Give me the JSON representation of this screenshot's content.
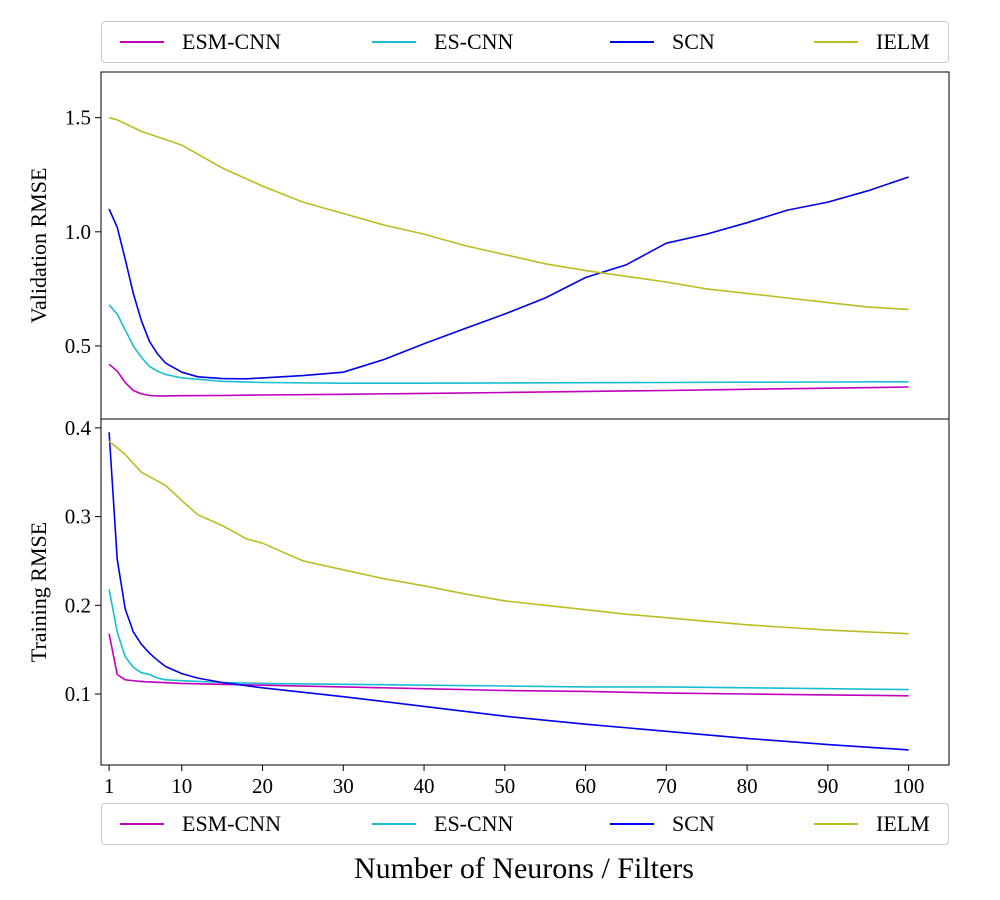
{
  "legend": {
    "items": [
      {
        "label": "ESM-CNN",
        "color": "#bf00bf"
      },
      {
        "label": "ES-CNN",
        "color": "#17becf"
      },
      {
        "label": "SCN",
        "color": "#0000ee"
      },
      {
        "label": "IELM",
        "color": "#bcbd22"
      }
    ]
  },
  "xlabel": "Number of Neurons / Filters",
  "chart_data": [
    {
      "type": "line",
      "ylabel": "Validation RMSE",
      "xlim": [
        0,
        105
      ],
      "ylim": [
        0.18,
        1.7
      ],
      "yticks": [
        0.5,
        1.0,
        1.5
      ],
      "ytick_labels": [
        "0.5",
        "1.0",
        "1.5"
      ],
      "series": [
        {
          "name": "ESM-CNN",
          "color": "#bf00bf",
          "x": [
            1,
            2,
            3,
            4,
            5,
            6,
            7,
            8,
            10,
            15,
            20,
            30,
            40,
            50,
            60,
            70,
            80,
            90,
            100
          ],
          "y": [
            0.42,
            0.39,
            0.34,
            0.305,
            0.29,
            0.283,
            0.281,
            0.281,
            0.282,
            0.283,
            0.285,
            0.288,
            0.292,
            0.296,
            0.301,
            0.305,
            0.31,
            0.315,
            0.32
          ]
        },
        {
          "name": "ES-CNN",
          "color": "#17becf",
          "x": [
            1,
            2,
            3,
            4,
            5,
            6,
            7,
            8,
            10,
            15,
            20,
            30,
            40,
            50,
            60,
            70,
            80,
            90,
            100
          ],
          "y": [
            0.68,
            0.64,
            0.57,
            0.5,
            0.45,
            0.41,
            0.39,
            0.375,
            0.36,
            0.345,
            0.34,
            0.337,
            0.337,
            0.338,
            0.339,
            0.34,
            0.341,
            0.342,
            0.343
          ]
        },
        {
          "name": "SCN",
          "color": "#0000ee",
          "x": [
            1,
            2,
            3,
            4,
            5,
            6,
            7,
            8,
            10,
            12,
            15,
            18,
            20,
            25,
            30,
            35,
            40,
            45,
            50,
            55,
            60,
            65,
            70,
            75,
            80,
            85,
            90,
            95,
            100
          ],
          "y": [
            1.1,
            1.02,
            0.88,
            0.73,
            0.61,
            0.52,
            0.465,
            0.425,
            0.385,
            0.365,
            0.357,
            0.356,
            0.36,
            0.37,
            0.385,
            0.44,
            0.51,
            0.575,
            0.64,
            0.71,
            0.8,
            0.855,
            0.95,
            0.99,
            1.04,
            1.095,
            1.13,
            1.18,
            1.24
          ]
        },
        {
          "name": "IELM",
          "color": "#bcbd22",
          "x": [
            1,
            2,
            5,
            10,
            15,
            20,
            25,
            30,
            35,
            40,
            45,
            50,
            55,
            60,
            65,
            70,
            75,
            80,
            85,
            90,
            95,
            100
          ],
          "y": [
            1.5,
            1.49,
            1.44,
            1.38,
            1.28,
            1.2,
            1.13,
            1.08,
            1.03,
            0.99,
            0.94,
            0.9,
            0.86,
            0.83,
            0.805,
            0.78,
            0.75,
            0.73,
            0.71,
            0.69,
            0.67,
            0.66
          ]
        }
      ]
    },
    {
      "type": "line",
      "ylabel": "Training RMSE",
      "xlim": [
        0,
        105
      ],
      "ylim": [
        0.02,
        0.41
      ],
      "yticks": [
        0.1,
        0.2,
        0.3,
        0.4
      ],
      "ytick_labels": [
        "0.1",
        "0.2",
        "0.3",
        "0.4"
      ],
      "xticks": [
        1,
        10,
        20,
        30,
        40,
        50,
        60,
        70,
        80,
        90,
        100
      ],
      "xtick_labels": [
        "1",
        "10",
        "20",
        "30",
        "40",
        "50",
        "60",
        "70",
        "80",
        "90",
        "100"
      ],
      "series": [
        {
          "name": "ESM-CNN",
          "color": "#bf00bf",
          "x": [
            1,
            2,
            3,
            5,
            10,
            20,
            30,
            40,
            50,
            60,
            70,
            80,
            90,
            100
          ],
          "y": [
            0.168,
            0.122,
            0.116,
            0.114,
            0.112,
            0.11,
            0.108,
            0.106,
            0.104,
            0.103,
            0.101,
            0.1,
            0.099,
            0.098
          ]
        },
        {
          "name": "ES-CNN",
          "color": "#17becf",
          "x": [
            1,
            2,
            3,
            4,
            5,
            6,
            7,
            8,
            10,
            15,
            20,
            30,
            40,
            50,
            60,
            70,
            80,
            90,
            100
          ],
          "y": [
            0.218,
            0.17,
            0.142,
            0.13,
            0.124,
            0.122,
            0.118,
            0.116,
            0.115,
            0.113,
            0.112,
            0.111,
            0.11,
            0.109,
            0.108,
            0.108,
            0.107,
            0.106,
            0.105
          ]
        },
        {
          "name": "SCN",
          "color": "#0000ee",
          "x": [
            1,
            2,
            3,
            4,
            5,
            6,
            7,
            8,
            10,
            12,
            15,
            20,
            30,
            40,
            50,
            60,
            70,
            80,
            90,
            100
          ],
          "y": [
            0.395,
            0.252,
            0.196,
            0.17,
            0.156,
            0.146,
            0.138,
            0.131,
            0.123,
            0.118,
            0.113,
            0.107,
            0.097,
            0.086,
            0.075,
            0.066,
            0.058,
            0.05,
            0.043,
            0.037
          ]
        },
        {
          "name": "IELM",
          "color": "#bcbd22",
          "x": [
            1,
            3,
            5,
            8,
            10,
            12,
            15,
            18,
            20,
            25,
            30,
            35,
            40,
            45,
            50,
            55,
            60,
            65,
            70,
            75,
            80,
            85,
            90,
            95,
            100
          ],
          "y": [
            0.385,
            0.37,
            0.35,
            0.335,
            0.318,
            0.302,
            0.29,
            0.275,
            0.27,
            0.25,
            0.24,
            0.23,
            0.222,
            0.213,
            0.205,
            0.2,
            0.195,
            0.19,
            0.186,
            0.182,
            0.178,
            0.175,
            0.172,
            0.17,
            0.168
          ]
        }
      ]
    }
  ]
}
